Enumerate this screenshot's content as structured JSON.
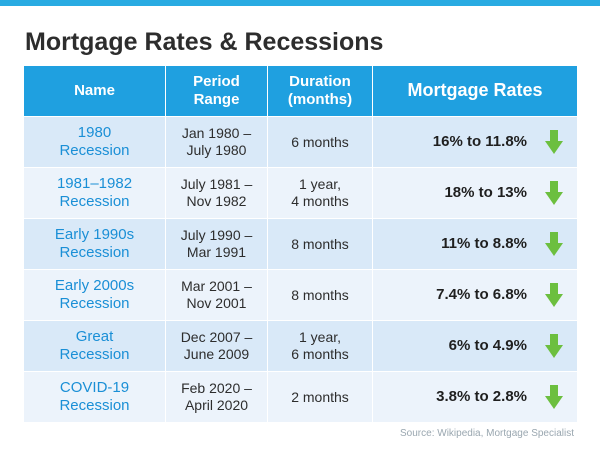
{
  "header": {
    "title": "Mortgage Rates & Recessions"
  },
  "table": {
    "columns": [
      "Name",
      "Period\nRange",
      "Duration\n(months)",
      "Mortgage Rates"
    ],
    "rows": [
      [
        "1980\nRecession",
        "Jan 1980 –\nJuly 1980",
        "6 months",
        "16% to 11.8%"
      ],
      [
        "1981–1982\nRecession",
        "July 1981 –\nNov 1982",
        "1 year,\n4 months",
        "18% to 13%"
      ],
      [
        "Early 1990s\nRecession",
        "July 1990 –\nMar 1991",
        "8 months",
        "11% to 8.8%"
      ],
      [
        "Early 2000s\nRecession",
        "Mar 2001 –\nNov 2001",
        "8 months",
        "7.4% to 6.8%"
      ],
      [
        "Great\nRecession",
        "Dec 2007 –\nJune 2009",
        "1 year,\n6 months",
        "6% to 4.9%"
      ],
      [
        "COVID-19\nRecession",
        "Feb 2020 –\nApril 2020",
        "2 months",
        "3.8% to 2.8%"
      ]
    ]
  },
  "footer": {
    "source": "Source: Wikipedia, Mortgage Specialist"
  }
}
